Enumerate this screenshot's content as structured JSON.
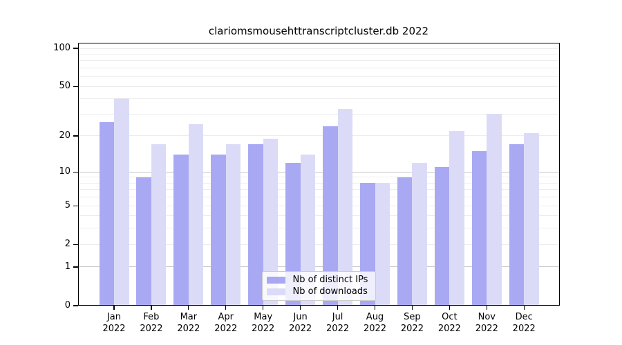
{
  "title": "clariomsmousehttranscriptcluster.db 2022",
  "chart_data": {
    "type": "bar",
    "title": "clariomsmousehttranscriptcluster.db 2022",
    "categories": [
      "Jan",
      "Feb",
      "Mar",
      "Apr",
      "May",
      "Jun",
      "Jul",
      "Aug",
      "Sep",
      "Oct",
      "Nov",
      "Dec"
    ],
    "year_label": "2022",
    "series": [
      {
        "name": "Nb of distinct IPs",
        "color": "#a9a9f3",
        "values": [
          26,
          9,
          14,
          14,
          17,
          12,
          24,
          8,
          9,
          11,
          15,
          17
        ]
      },
      {
        "name": "Nb of downloads",
        "color": "#dbdbf8",
        "values": [
          40,
          17,
          25,
          17,
          19,
          14,
          33,
          8,
          12,
          22,
          30,
          21
        ]
      }
    ],
    "y_axis": {
      "scale": "log10(value+1)",
      "range": [
        0,
        110
      ],
      "tick_labels": [
        "100",
        "50",
        "20",
        "10",
        "5",
        "2",
        "1",
        "0"
      ],
      "tick_values": [
        100,
        50,
        20,
        10,
        5,
        2,
        1,
        0
      ],
      "major_gridlines": [
        1,
        10
      ],
      "minor_gridlines": [
        2,
        3,
        4,
        5,
        6,
        7,
        8,
        9,
        20,
        30,
        40,
        50,
        60,
        70,
        80,
        90,
        100
      ]
    },
    "x_axis": {
      "tick_labels_line2": "2022"
    },
    "legend": {
      "position": "lower center",
      "entries": [
        "Nb of distinct IPs",
        "Nb of downloads"
      ]
    },
    "grid": true
  },
  "colors": {
    "bar_ips": "#a9a9f3",
    "bar_downloads": "#dbdbf8",
    "grid_minor": "#ececec",
    "grid_major": "#c6c6c6",
    "axis": "#000000",
    "legend_border": "#cccccc",
    "background": "#ffffff"
  }
}
